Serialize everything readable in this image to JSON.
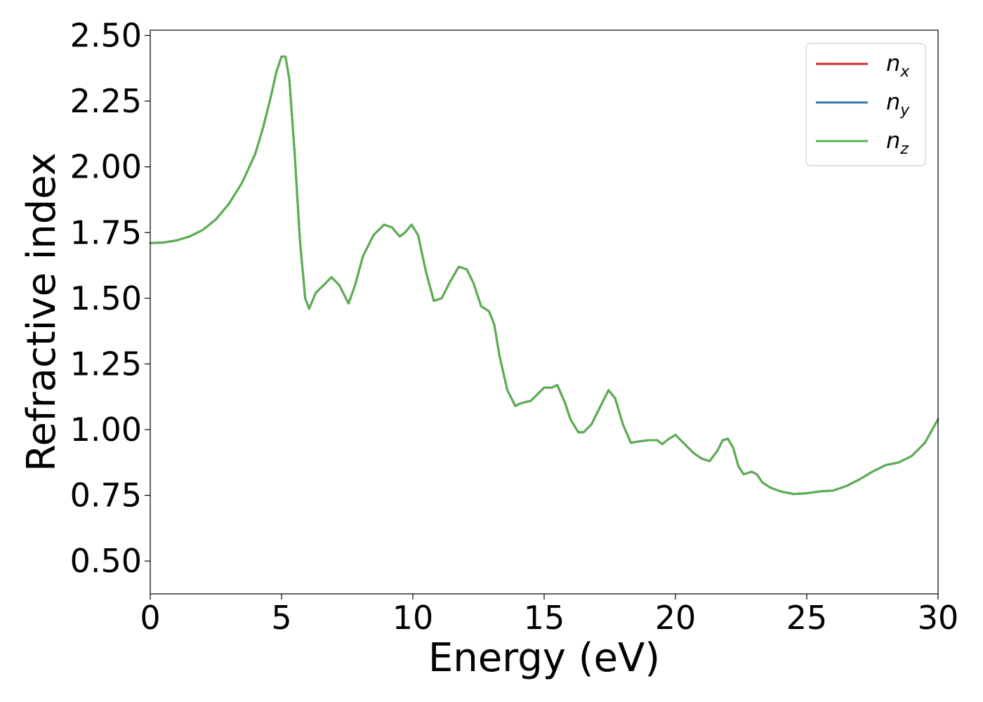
{
  "chart_data": {
    "type": "line",
    "title": "",
    "xlabel": "Energy (eV)",
    "ylabel": "Refractive index",
    "xlim": [
      0,
      30
    ],
    "ylim": [
      0.375,
      2.52
    ],
    "xticks": [
      0,
      5,
      10,
      15,
      20,
      25,
      30
    ],
    "xtick_labels": [
      "0",
      "5",
      "10",
      "15",
      "20",
      "25",
      "30"
    ],
    "yticks": [
      0.5,
      0.75,
      1.0,
      1.25,
      1.5,
      1.75,
      2.0,
      2.25,
      2.5
    ],
    "ytick_labels": [
      "0.50",
      "0.75",
      "1.00",
      "1.25",
      "1.50",
      "1.75",
      "2.00",
      "2.25",
      "2.50"
    ],
    "grid": false,
    "legend_position": "top-right",
    "x": [
      0,
      0.5,
      1,
      1.5,
      2,
      2.5,
      3,
      3.5,
      4,
      4.3,
      4.6,
      4.8,
      5.0,
      5.15,
      5.3,
      5.5,
      5.7,
      5.9,
      6.05,
      6.3,
      6.6,
      6.9,
      7.2,
      7.55,
      7.8,
      8.1,
      8.5,
      8.9,
      9.2,
      9.5,
      9.7,
      9.95,
      10.2,
      10.5,
      10.8,
      11.1,
      11.4,
      11.75,
      12.05,
      12.3,
      12.6,
      12.9,
      13.1,
      13.3,
      13.6,
      13.9,
      14.1,
      14.5,
      14.8,
      15.0,
      15.3,
      15.5,
      15.8,
      16.0,
      16.3,
      16.5,
      16.8,
      17.1,
      17.45,
      17.7,
      18.0,
      18.3,
      18.6,
      19.0,
      19.3,
      19.5,
      19.75,
      20.0,
      20.3,
      20.7,
      21.0,
      21.3,
      21.6,
      21.8,
      22.0,
      22.2,
      22.4,
      22.6,
      22.9,
      23.1,
      23.3,
      23.6,
      24.0,
      24.5,
      25.0,
      25.5,
      26.0,
      26.5,
      27.0,
      27.5,
      28.0,
      28.5,
      29.0,
      29.5,
      30.0
    ],
    "series": [
      {
        "name": "n_x",
        "values": [
          1.71,
          1.712,
          1.72,
          1.735,
          1.76,
          1.8,
          1.86,
          1.94,
          2.05,
          2.15,
          2.27,
          2.36,
          2.42,
          2.42,
          2.33,
          2.05,
          1.72,
          1.5,
          1.46,
          1.52,
          1.55,
          1.58,
          1.55,
          1.48,
          1.55,
          1.66,
          1.74,
          1.78,
          1.77,
          1.735,
          1.75,
          1.78,
          1.74,
          1.6,
          1.49,
          1.5,
          1.56,
          1.62,
          1.61,
          1.56,
          1.47,
          1.45,
          1.4,
          1.28,
          1.15,
          1.09,
          1.1,
          1.11,
          1.14,
          1.16,
          1.16,
          1.17,
          1.1,
          1.04,
          0.99,
          0.99,
          1.02,
          1.08,
          1.15,
          1.12,
          1.02,
          0.95,
          0.955,
          0.96,
          0.96,
          0.945,
          0.965,
          0.98,
          0.95,
          0.91,
          0.89,
          0.88,
          0.92,
          0.96,
          0.965,
          0.93,
          0.86,
          0.83,
          0.84,
          0.83,
          0.8,
          0.78,
          0.765,
          0.755,
          0.758,
          0.765,
          0.768,
          0.785,
          0.81,
          0.84,
          0.865,
          0.875,
          0.9,
          0.95,
          1.04
        ]
      },
      {
        "name": "n_y",
        "values": [
          1.71,
          1.712,
          1.72,
          1.735,
          1.76,
          1.8,
          1.86,
          1.94,
          2.05,
          2.15,
          2.27,
          2.36,
          2.42,
          2.42,
          2.33,
          2.05,
          1.72,
          1.5,
          1.46,
          1.52,
          1.55,
          1.58,
          1.55,
          1.48,
          1.55,
          1.66,
          1.74,
          1.78,
          1.77,
          1.735,
          1.75,
          1.78,
          1.74,
          1.6,
          1.49,
          1.5,
          1.56,
          1.62,
          1.61,
          1.56,
          1.47,
          1.45,
          1.4,
          1.28,
          1.15,
          1.09,
          1.1,
          1.11,
          1.14,
          1.16,
          1.16,
          1.17,
          1.1,
          1.04,
          0.99,
          0.99,
          1.02,
          1.08,
          1.15,
          1.12,
          1.02,
          0.95,
          0.955,
          0.96,
          0.96,
          0.945,
          0.965,
          0.98,
          0.95,
          0.91,
          0.89,
          0.88,
          0.92,
          0.96,
          0.965,
          0.93,
          0.86,
          0.83,
          0.84,
          0.83,
          0.8,
          0.78,
          0.765,
          0.755,
          0.758,
          0.765,
          0.768,
          0.785,
          0.81,
          0.84,
          0.865,
          0.875,
          0.9,
          0.95,
          1.04
        ]
      },
      {
        "name": "n_z",
        "values": [
          1.71,
          1.712,
          1.72,
          1.735,
          1.76,
          1.8,
          1.86,
          1.94,
          2.05,
          2.15,
          2.27,
          2.36,
          2.42,
          2.42,
          2.33,
          2.05,
          1.72,
          1.5,
          1.46,
          1.52,
          1.55,
          1.58,
          1.55,
          1.48,
          1.55,
          1.66,
          1.74,
          1.78,
          1.77,
          1.735,
          1.75,
          1.78,
          1.74,
          1.6,
          1.49,
          1.5,
          1.56,
          1.62,
          1.61,
          1.56,
          1.47,
          1.45,
          1.4,
          1.28,
          1.15,
          1.09,
          1.1,
          1.11,
          1.14,
          1.16,
          1.16,
          1.17,
          1.1,
          1.04,
          0.99,
          0.99,
          1.02,
          1.08,
          1.15,
          1.12,
          1.02,
          0.95,
          0.955,
          0.96,
          0.96,
          0.945,
          0.965,
          0.98,
          0.95,
          0.91,
          0.89,
          0.88,
          0.92,
          0.96,
          0.965,
          0.93,
          0.86,
          0.83,
          0.84,
          0.83,
          0.8,
          0.78,
          0.765,
          0.755,
          0.758,
          0.765,
          0.768,
          0.785,
          0.81,
          0.84,
          0.865,
          0.875,
          0.9,
          0.95,
          1.04
        ]
      }
    ],
    "legend": [
      {
        "label": "n",
        "sub": "x",
        "color": "#d62728"
      },
      {
        "label": "n",
        "sub": "y",
        "color": "#3a78b5"
      },
      {
        "label": "n",
        "sub": "z",
        "color": "#5ab04f"
      }
    ]
  }
}
